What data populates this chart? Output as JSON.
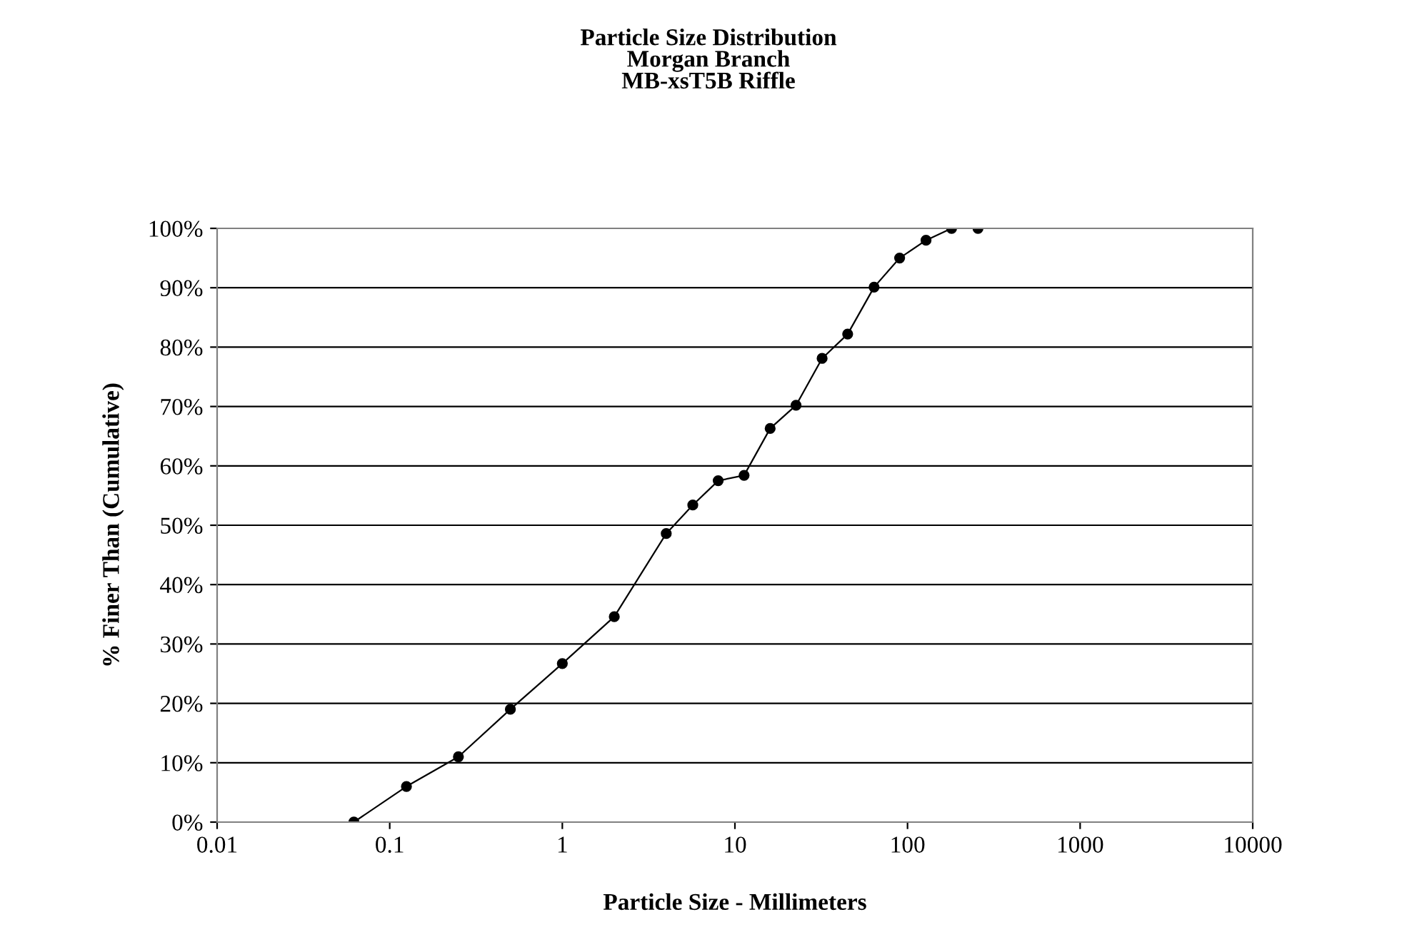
{
  "chart_data": {
    "type": "line",
    "title": "Particle Size Distribution\nMorgan Branch\nMB-xsT5B Riffle",
    "xlabel": "Particle Size - Millimeters",
    "ylabel": "% Finer Than (Cumulative)",
    "log": "x",
    "grid": "y",
    "marker": "circle",
    "line_style": "solid",
    "xlim": [
      0.01,
      10000
    ],
    "xticks": [
      0.01,
      0.1,
      1,
      10,
      100,
      1000,
      10000
    ],
    "ylim": [
      0,
      100
    ],
    "yticks": [
      {
        "value": 0,
        "label": "0%"
      },
      {
        "value": 10,
        "label": "10%"
      },
      {
        "value": 20,
        "label": "20%"
      },
      {
        "value": 30,
        "label": "30%"
      },
      {
        "value": 40,
        "label": "40%"
      },
      {
        "value": 50,
        "label": "50%"
      },
      {
        "value": 60,
        "label": "60%"
      },
      {
        "value": 70,
        "label": "70%"
      },
      {
        "value": 80,
        "label": "80%"
      },
      {
        "value": 90,
        "label": "90%"
      },
      {
        "value": 100,
        "label": "100%"
      }
    ],
    "series": [
      {
        "color": "#000000",
        "x": [
          0.062,
          0.125,
          0.25,
          0.5,
          1,
          2,
          4,
          5.7,
          8,
          11.3,
          16,
          22.6,
          32,
          45,
          64,
          90,
          128,
          180,
          256
        ],
        "values": [
          0,
          6,
          11,
          19,
          26.7,
          34.6,
          48.6,
          53.4,
          57.5,
          58.4,
          66.3,
          70.2,
          78.1,
          82.2,
          90.1,
          95,
          98,
          100,
          100
        ]
      }
    ]
  }
}
